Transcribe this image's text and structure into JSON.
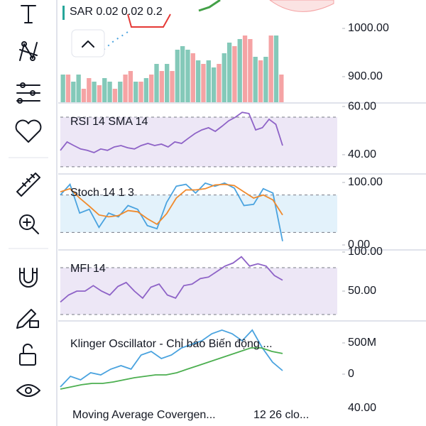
{
  "header": {
    "sar_label": "SAR 0.02 0.02 0.2"
  },
  "price_panel": {
    "ylim": [
      845.6,
      1058.8
    ],
    "yticks": [
      {
        "value": 1000,
        "label": "1000.00"
      },
      {
        "value": 900,
        "label": "900.00"
      }
    ],
    "volume": {
      "ylim": [
        0,
        100
      ],
      "up_color": "#84c9b9",
      "down_color": "#f5a3a4",
      "values": [
        40,
        40,
        30,
        40,
        20,
        35,
        30,
        25,
        35,
        30,
        20,
        30,
        40,
        45,
        30,
        30,
        35,
        40,
        55,
        45,
        55,
        45,
        75,
        80,
        75,
        70,
        60,
        55,
        60,
        50,
        55,
        70,
        85,
        80,
        90,
        95,
        90,
        65,
        60,
        65,
        95,
        95,
        40
      ],
      "directions": [
        "up",
        "down",
        "up",
        "up",
        "down",
        "down",
        "up",
        "down",
        "up",
        "up",
        "down",
        "up",
        "down",
        "down",
        "up",
        "down",
        "up",
        "down",
        "up",
        "down",
        "up",
        "down",
        "up",
        "up",
        "up",
        "down",
        "up",
        "down",
        "up",
        "up",
        "down",
        "up",
        "up",
        "down",
        "up",
        "down",
        "down",
        "up",
        "down",
        "up",
        "down",
        "up",
        "down"
      ]
    }
  },
  "panels": [
    {
      "label": "RSI 14 SMA 14",
      "ylim": [
        32.9,
        60.6
      ],
      "yticks": [
        {
          "value": 60,
          "label": "60.00"
        },
        {
          "value": 40,
          "label": "40.00"
        }
      ],
      "band": [
        35,
        55.6
      ],
      "band_color": "#ede7f6",
      "series": [
        {
          "color": "#8e63c7",
          "values": [
            41.8,
            45.3,
            43.8,
            42.4,
            41.8,
            40.9,
            42.4,
            41.8,
            43.2,
            43.8,
            42.9,
            42.4,
            43.8,
            44.7,
            43.8,
            44.4,
            43.2,
            45.3,
            44.7,
            46.8,
            48.8,
            50.3,
            51.2,
            49.7,
            51.8,
            54.1,
            55.6,
            57.6,
            57.1,
            50.3,
            51.2,
            54.7,
            52.6,
            43.8
          ]
        }
      ]
    },
    {
      "label": "Stoch 14 1 3",
      "ylim": [
        -5.7,
        110.2
      ],
      "yticks": [
        {
          "value": 100,
          "label": "100.00"
        },
        {
          "value": 0,
          "label": "0.00"
        }
      ],
      "band": [
        20,
        80
      ],
      "band_color": "#e3f2fb",
      "series": [
        {
          "color": "#4aa3df",
          "values": [
            80,
            97,
            51,
            57,
            28,
            51,
            45,
            63,
            57,
            31,
            26,
            68,
            94,
            97,
            83,
            99,
            94,
            99,
            91,
            63,
            65,
            90,
            83,
            6
          ]
        },
        {
          "color": "#f08a2c",
          "values": [
            85,
            90,
            75,
            62,
            48,
            45,
            47,
            55,
            53,
            42,
            33,
            50,
            75,
            88,
            88,
            90,
            96,
            97,
            95,
            85,
            75,
            80,
            72,
            48
          ]
        }
      ]
    },
    {
      "label": "MFI 14",
      "ylim": [
        15.5,
        100
      ],
      "yticks": [
        {
          "value": 100,
          "label": "100.00"
        },
        {
          "value": 50,
          "label": "50.00"
        }
      ],
      "band": [
        20,
        80
      ],
      "band_color": "#ede7f6",
      "series": [
        {
          "color": "#8e63c7",
          "values": [
            36,
            45,
            50,
            50,
            57,
            50,
            45,
            56,
            61,
            50,
            41,
            55,
            59,
            45,
            41,
            57,
            59,
            66,
            68,
            75,
            82,
            86,
            94,
            82,
            85,
            82,
            70,
            64
          ]
        }
      ]
    },
    {
      "label": "Klinger Oscillator - Chỉ báo Biến động ...",
      "ylim": [
        -432000000,
        818000000
      ],
      "yticks": [
        {
          "value": 500000000,
          "label": "500M"
        },
        0
      ],
      "series": [
        {
          "color": "#4aa3df",
          "values": [
            -205000000,
            -34000000,
            -91000000,
            23000000,
            -11000000,
            80000000,
            136000000,
            80000000,
            307000000,
            364000000,
            250000000,
            307000000,
            420000000,
            477000000,
            534000000,
            648000000,
            705000000,
            648000000,
            534000000,
            705000000,
            420000000,
            193000000,
            57000000
          ]
        },
        {
          "color": "#4caf50",
          "values": [
            -239000000,
            -205000000,
            -170000000,
            -148000000,
            -148000000,
            -125000000,
            -91000000,
            -57000000,
            -34000000,
            -11000000,
            -11000000,
            23000000,
            80000000,
            136000000,
            193000000,
            250000000,
            307000000,
            364000000,
            420000000,
            420000000,
            364000000,
            330000000
          ]
        }
      ]
    }
  ],
  "macd": {
    "label": "Moving Average Covergen...",
    "params": "12 26 clo...",
    "tick": "40.00"
  }
}
